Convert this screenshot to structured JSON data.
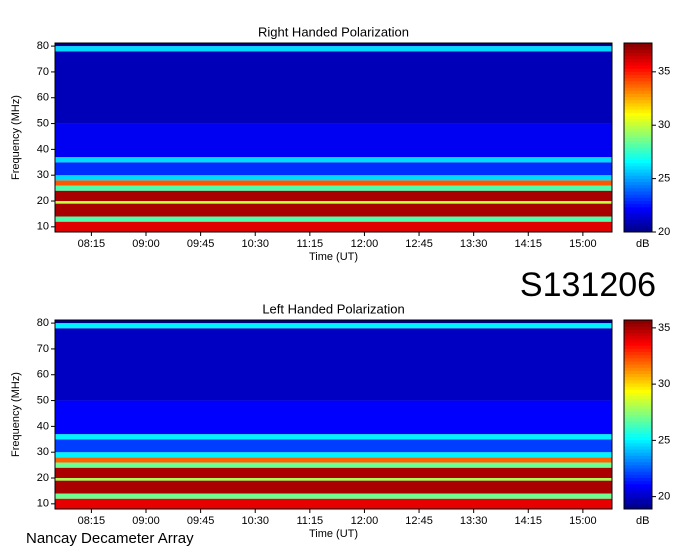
{
  "chart_data": [
    {
      "type": "heatmap",
      "title": "Right Handed Polarization",
      "xlabel": "Time (UT)",
      "ylabel": "Frequency (MHz)",
      "zlabel": "dB",
      "xlim": [
        465,
        924
      ],
      "xticks": [
        {
          "value": 495,
          "label": "08:15"
        },
        {
          "value": 540,
          "label": "09:00"
        },
        {
          "value": 585,
          "label": "09:45"
        },
        {
          "value": 630,
          "label": "10:30"
        },
        {
          "value": 675,
          "label": "11:15"
        },
        {
          "value": 720,
          "label": "12:00"
        },
        {
          "value": 765,
          "label": "12:45"
        },
        {
          "value": 810,
          "label": "13:30"
        },
        {
          "value": 855,
          "label": "14:15"
        },
        {
          "value": 900,
          "label": "15:00"
        }
      ],
      "ylim": [
        8,
        81.2
      ],
      "yticks": [
        10,
        20,
        30,
        40,
        50,
        60,
        70,
        80
      ],
      "ybins": [
        8,
        12,
        14,
        19,
        20,
        24,
        26,
        28,
        30,
        35,
        37,
        50,
        78,
        80,
        81.2
      ],
      "values": [
        36,
        28,
        37,
        30,
        37,
        28,
        34,
        26,
        23,
        26,
        22,
        21,
        26,
        20
      ],
      "zlim": [
        20,
        37.7
      ],
      "zticks": [
        20,
        25,
        30,
        35
      ]
    },
    {
      "type": "heatmap",
      "title": "Left Handed Polarization",
      "xlabel": "Time (UT)",
      "ylabel": "Frequency (MHz)",
      "zlabel": "dB",
      "xlim": [
        465,
        924
      ],
      "xticks": [
        {
          "value": 495,
          "label": "08:15"
        },
        {
          "value": 540,
          "label": "09:00"
        },
        {
          "value": 585,
          "label": "09:45"
        },
        {
          "value": 630,
          "label": "10:30"
        },
        {
          "value": 675,
          "label": "11:15"
        },
        {
          "value": 720,
          "label": "12:00"
        },
        {
          "value": 765,
          "label": "12:45"
        },
        {
          "value": 810,
          "label": "13:30"
        },
        {
          "value": 855,
          "label": "14:15"
        },
        {
          "value": 900,
          "label": "15:00"
        }
      ],
      "ylim": [
        8,
        81.2
      ],
      "yticks": [
        10,
        20,
        30,
        40,
        50,
        60,
        70,
        80
      ],
      "ybins": [
        8,
        12,
        14,
        19,
        20,
        24,
        26,
        28,
        30,
        35,
        37,
        50,
        78,
        80,
        81.2
      ],
      "values": [
        34,
        27,
        35,
        28,
        35,
        27,
        32,
        25,
        22,
        25,
        21,
        20,
        25,
        19
      ],
      "zlim": [
        18.9,
        35.7
      ],
      "zticks": [
        20,
        25,
        30,
        35
      ]
    }
  ],
  "label": "S131206",
  "footer": "Nancay Decameter Array"
}
